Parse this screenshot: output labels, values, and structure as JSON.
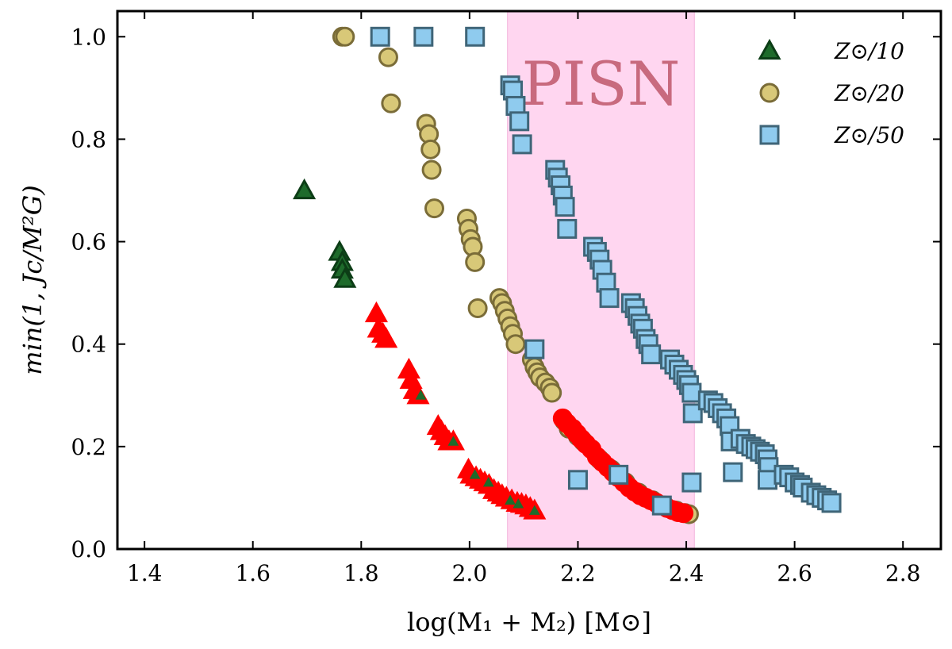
{
  "chart_data": {
    "type": "scatter",
    "title": "",
    "xlabel": "log(M₁ + M₂) [M⊙]",
    "ylabel": "min(1, Jc/M²G)",
    "xlim": [
      1.35,
      2.87
    ],
    "ylim": [
      0.0,
      1.05
    ],
    "xticks": [
      1.4,
      1.6,
      1.8,
      2.0,
      2.2,
      2.4,
      2.6,
      2.8
    ],
    "xtick_labels": [
      "1.4",
      "1.6",
      "1.8",
      "2.0",
      "2.2",
      "2.4",
      "2.6",
      "2.8"
    ],
    "yticks": [
      0.0,
      0.2,
      0.4,
      0.6,
      0.8,
      1.0
    ],
    "ytick_labels": [
      "0.0",
      "0.2",
      "0.4",
      "0.6",
      "0.8",
      "1.0"
    ],
    "grid": false,
    "legend_position": "top-right",
    "shaded_region": {
      "label": "PISN",
      "x_range": [
        2.07,
        2.415
      ],
      "color": "#ffd6f0"
    },
    "series": [
      {
        "name": "Z⊙/10",
        "marker": "triangle",
        "fill": "#1e6b2b",
        "edge": "#0c3d16",
        "points": [
          [
            1.695,
            0.7
          ],
          [
            1.76,
            0.58
          ],
          [
            1.765,
            0.56
          ],
          [
            1.765,
            0.545
          ],
          [
            1.77,
            0.527
          ]
        ]
      },
      {
        "name": "Z⊙/10 (red)",
        "legend": false,
        "marker": "triangle",
        "fill": "#ff0000",
        "edge": "#ff0000",
        "points": [
          [
            1.828,
            0.46
          ],
          [
            1.832,
            0.43
          ],
          [
            1.84,
            0.42
          ],
          [
            1.846,
            0.41
          ],
          [
            1.888,
            0.35
          ],
          [
            1.892,
            0.33
          ],
          [
            1.898,
            0.31
          ],
          [
            1.905,
            0.3
          ],
          [
            1.942,
            0.24
          ],
          [
            1.948,
            0.23
          ],
          [
            1.955,
            0.22
          ],
          [
            1.962,
            0.21
          ],
          [
            1.97,
            0.21
          ],
          [
            1.998,
            0.155
          ],
          [
            2.003,
            0.145
          ],
          [
            2.012,
            0.14
          ],
          [
            2.02,
            0.135
          ],
          [
            2.028,
            0.13
          ],
          [
            2.036,
            0.125
          ],
          [
            2.045,
            0.115
          ],
          [
            2.053,
            0.11
          ],
          [
            2.06,
            0.105
          ],
          [
            2.068,
            0.1
          ],
          [
            2.078,
            0.095
          ],
          [
            2.088,
            0.09
          ],
          [
            2.096,
            0.088
          ],
          [
            2.104,
            0.085
          ],
          [
            2.112,
            0.08
          ],
          [
            2.12,
            0.075
          ]
        ]
      },
      {
        "name": "Z⊙/10 (red, inner)",
        "legend": false,
        "marker": "triangle-small",
        "fill": "#1e6b2b",
        "edge": "#1e6b2b",
        "points": [
          [
            1.91,
            0.3
          ],
          [
            1.97,
            0.21
          ],
          [
            2.01,
            0.145
          ],
          [
            2.035,
            0.13
          ],
          [
            2.075,
            0.095
          ],
          [
            2.09,
            0.088
          ],
          [
            2.12,
            0.075
          ]
        ]
      },
      {
        "name": "Z⊙/20",
        "marker": "circle",
        "fill": "#d8c878",
        "edge": "#7a6c38",
        "points": [
          [
            1.765,
            1.0
          ],
          [
            1.77,
            1.0
          ],
          [
            1.85,
            0.96
          ],
          [
            1.855,
            0.87
          ],
          [
            1.92,
            0.83
          ],
          [
            1.925,
            0.81
          ],
          [
            1.928,
            0.78
          ],
          [
            1.93,
            0.74
          ],
          [
            1.935,
            0.665
          ],
          [
            1.995,
            0.645
          ],
          [
            1.998,
            0.625
          ],
          [
            2.002,
            0.605
          ],
          [
            2.006,
            0.59
          ],
          [
            2.01,
            0.56
          ],
          [
            2.015,
            0.47
          ],
          [
            2.055,
            0.49
          ],
          [
            2.06,
            0.48
          ],
          [
            2.065,
            0.465
          ],
          [
            2.07,
            0.45
          ],
          [
            2.075,
            0.435
          ],
          [
            2.08,
            0.42
          ],
          [
            2.085,
            0.4
          ],
          [
            2.115,
            0.37
          ],
          [
            2.12,
            0.355
          ],
          [
            2.125,
            0.345
          ],
          [
            2.13,
            0.335
          ],
          [
            2.14,
            0.325
          ],
          [
            2.148,
            0.315
          ],
          [
            2.152,
            0.305
          ],
          [
            2.175,
            0.25
          ],
          [
            2.183,
            0.235
          ],
          [
            2.2,
            0.22
          ],
          [
            2.21,
            0.21
          ],
          [
            2.24,
            0.175
          ],
          [
            2.262,
            0.155
          ],
          [
            2.288,
            0.13
          ],
          [
            2.312,
            0.11
          ],
          [
            2.338,
            0.095
          ],
          [
            2.36,
            0.085
          ],
          [
            2.382,
            0.075
          ],
          [
            2.398,
            0.07
          ],
          [
            2.405,
            0.068
          ]
        ]
      },
      {
        "name": "Z⊙/20 (red)",
        "legend": false,
        "marker": "circle",
        "fill": "#ff0000",
        "edge": "#ff0000",
        "points": [
          [
            2.172,
            0.255
          ],
          [
            2.18,
            0.245
          ],
          [
            2.19,
            0.235
          ],
          [
            2.198,
            0.225
          ],
          [
            2.206,
            0.215
          ],
          [
            2.215,
            0.205
          ],
          [
            2.225,
            0.195
          ],
          [
            2.235,
            0.18
          ],
          [
            2.245,
            0.17
          ],
          [
            2.255,
            0.16
          ],
          [
            2.265,
            0.15
          ],
          [
            2.275,
            0.14
          ],
          [
            2.285,
            0.13
          ],
          [
            2.295,
            0.12
          ],
          [
            2.305,
            0.112
          ],
          [
            2.315,
            0.105
          ],
          [
            2.325,
            0.1
          ],
          [
            2.335,
            0.095
          ],
          [
            2.345,
            0.09
          ],
          [
            2.355,
            0.085
          ],
          [
            2.365,
            0.08
          ],
          [
            2.375,
            0.076
          ],
          [
            2.385,
            0.072
          ],
          [
            2.395,
            0.07
          ]
        ]
      },
      {
        "name": "Z⊙/50",
        "marker": "square",
        "fill": "#8fcbee",
        "edge": "#3f6578",
        "points": [
          [
            1.835,
            1.0
          ],
          [
            1.915,
            1.0
          ],
          [
            2.01,
            1.0
          ],
          [
            2.075,
            0.905
          ],
          [
            2.08,
            0.895
          ],
          [
            2.085,
            0.865
          ],
          [
            2.092,
            0.835
          ],
          [
            2.097,
            0.79
          ],
          [
            2.12,
            0.39
          ],
          [
            2.158,
            0.74
          ],
          [
            2.163,
            0.725
          ],
          [
            2.168,
            0.71
          ],
          [
            2.172,
            0.69
          ],
          [
            2.176,
            0.668
          ],
          [
            2.18,
            0.625
          ],
          [
            2.2,
            0.135
          ],
          [
            2.228,
            0.59
          ],
          [
            2.235,
            0.58
          ],
          [
            2.24,
            0.565
          ],
          [
            2.245,
            0.545
          ],
          [
            2.252,
            0.52
          ],
          [
            2.258,
            0.49
          ],
          [
            2.275,
            0.145
          ],
          [
            2.298,
            0.48
          ],
          [
            2.305,
            0.47
          ],
          [
            2.31,
            0.455
          ],
          [
            2.315,
            0.44
          ],
          [
            2.32,
            0.43
          ],
          [
            2.325,
            0.41
          ],
          [
            2.33,
            0.4
          ],
          [
            2.335,
            0.38
          ],
          [
            2.355,
            0.085
          ],
          [
            2.37,
            0.37
          ],
          [
            2.378,
            0.36
          ],
          [
            2.386,
            0.35
          ],
          [
            2.394,
            0.34
          ],
          [
            2.4,
            0.33
          ],
          [
            2.405,
            0.32
          ],
          [
            2.41,
            0.305
          ],
          [
            2.412,
            0.265
          ],
          [
            2.41,
            0.13
          ],
          [
            2.44,
            0.29
          ],
          [
            2.45,
            0.285
          ],
          [
            2.458,
            0.275
          ],
          [
            2.466,
            0.265
          ],
          [
            2.474,
            0.255
          ],
          [
            2.48,
            0.24
          ],
          [
            2.482,
            0.21
          ],
          [
            2.486,
            0.15
          ],
          [
            2.5,
            0.215
          ],
          [
            2.51,
            0.205
          ],
          [
            2.52,
            0.2
          ],
          [
            2.528,
            0.195
          ],
          [
            2.536,
            0.19
          ],
          [
            2.545,
            0.185
          ],
          [
            2.55,
            0.175
          ],
          [
            2.552,
            0.16
          ],
          [
            2.55,
            0.135
          ],
          [
            2.58,
            0.145
          ],
          [
            2.59,
            0.14
          ],
          [
            2.6,
            0.13
          ],
          [
            2.61,
            0.125
          ],
          [
            2.615,
            0.12
          ],
          [
            2.63,
            0.11
          ],
          [
            2.64,
            0.105
          ],
          [
            2.65,
            0.1
          ],
          [
            2.66,
            0.095
          ],
          [
            2.668,
            0.09
          ]
        ]
      }
    ],
    "legend": [
      {
        "label": "Z⊙/10",
        "marker": "triangle"
      },
      {
        "label": "Z⊙/20",
        "marker": "circle"
      },
      {
        "label": "Z⊙/50",
        "marker": "square"
      }
    ]
  }
}
